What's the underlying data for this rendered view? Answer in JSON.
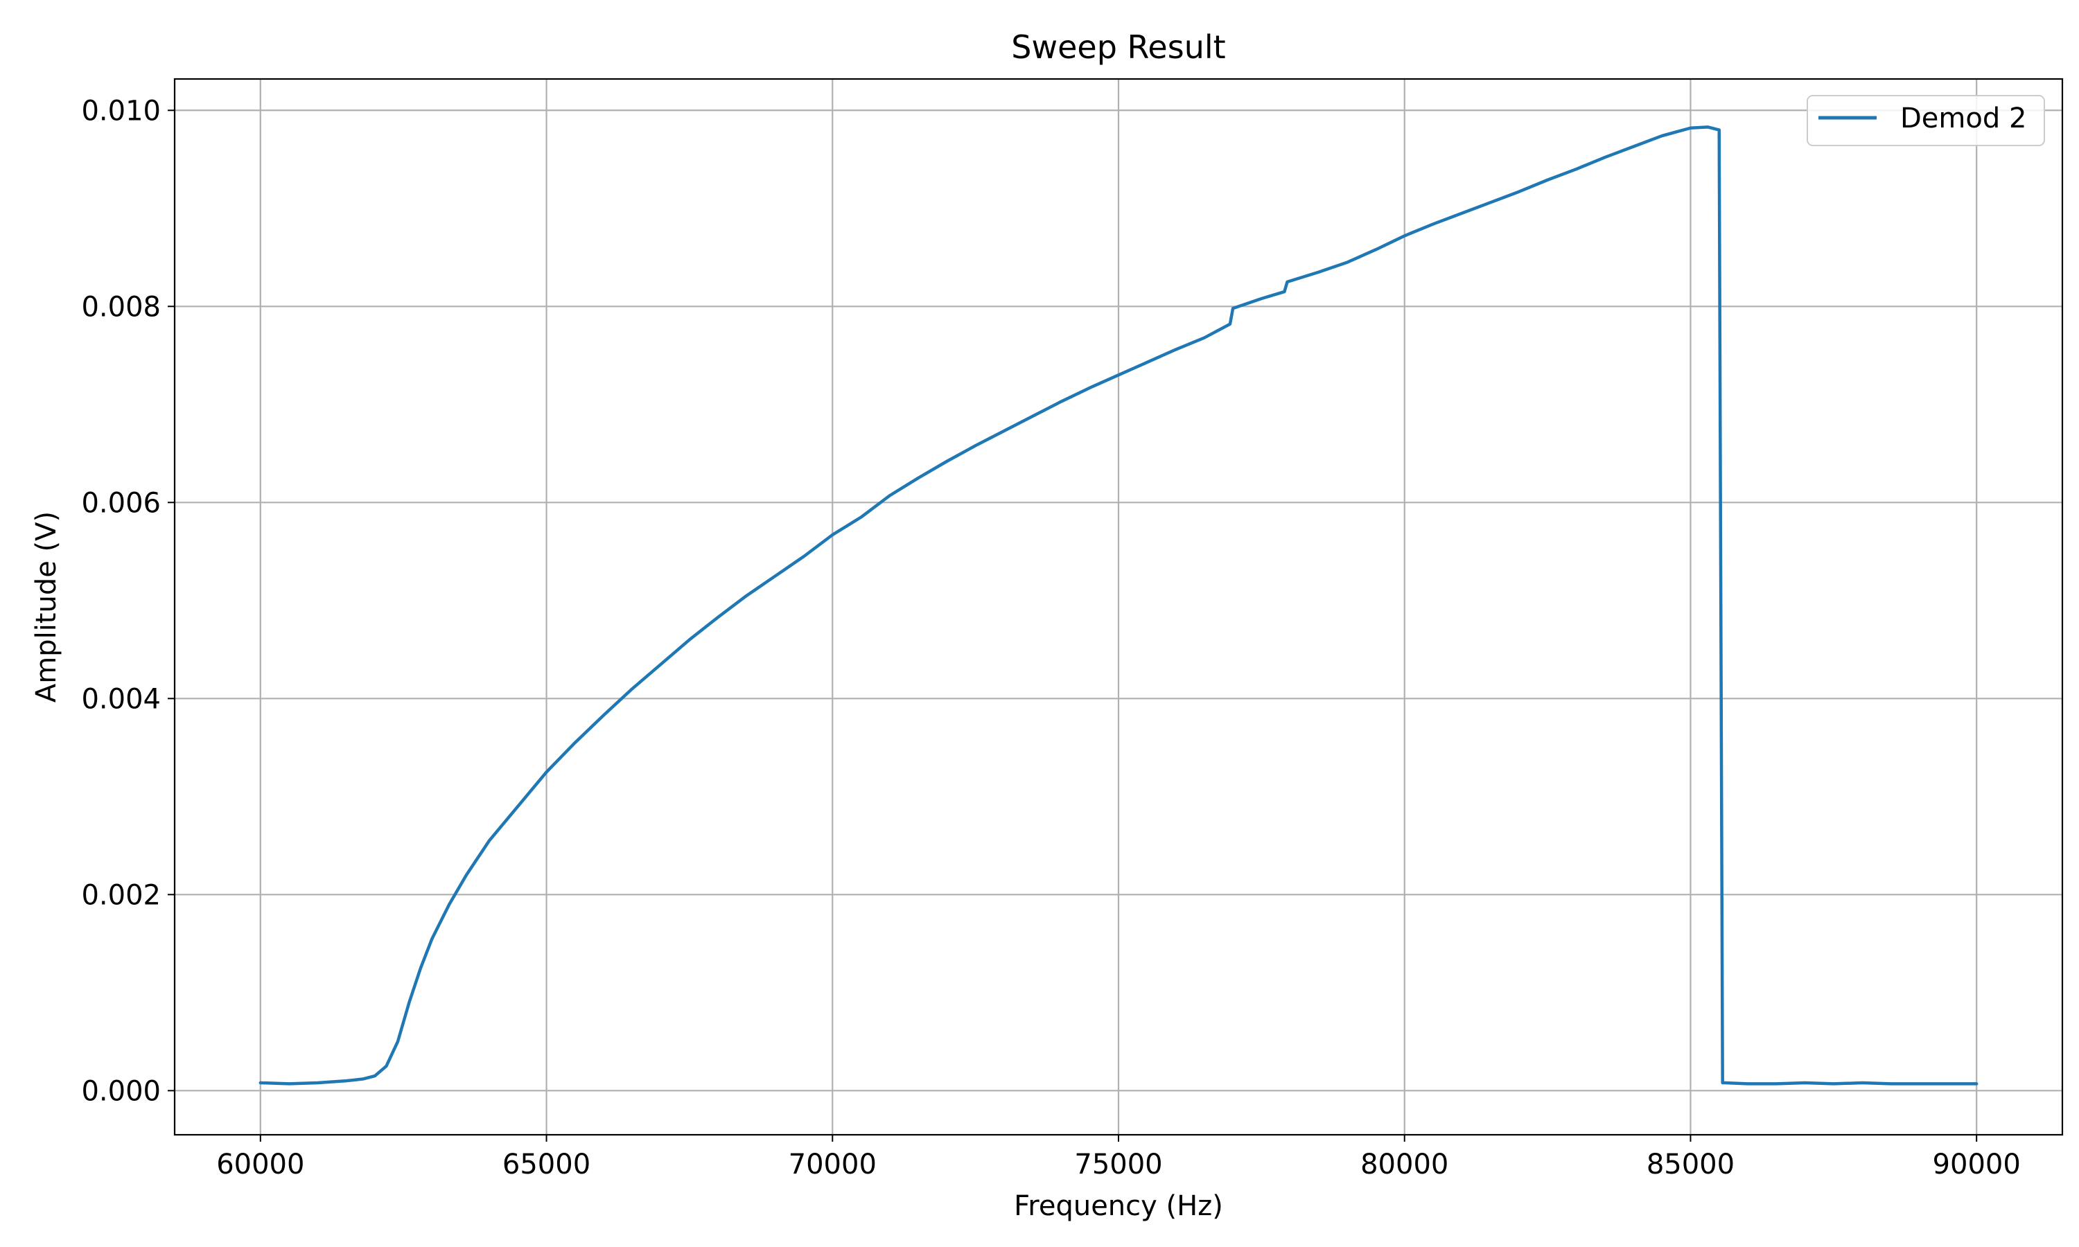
{
  "chart_data": {
    "type": "line",
    "title": "Sweep Result",
    "xlabel": "Frequency (Hz)",
    "ylabel": "Amplitude (V)",
    "xlim": [
      58500,
      91500
    ],
    "ylim": [
      -0.00045,
      0.01032
    ],
    "xticks": [
      60000,
      65000,
      70000,
      75000,
      80000,
      85000,
      90000
    ],
    "xtick_labels": [
      "60000",
      "65000",
      "70000",
      "75000",
      "80000",
      "85000",
      "90000"
    ],
    "yticks": [
      0.0,
      0.002,
      0.004,
      0.006,
      0.008,
      0.01
    ],
    "ytick_labels": [
      "0.000",
      "0.002",
      "0.004",
      "0.006",
      "0.008",
      "0.010"
    ],
    "grid": true,
    "legend_position": "top-right",
    "series": [
      {
        "name": "Demod 2",
        "color": "#1f77b4",
        "x": [
          60000,
          60500,
          61000,
          61500,
          61800,
          62000,
          62200,
          62400,
          62600,
          62800,
          63000,
          63300,
          63600,
          64000,
          64500,
          65000,
          65500,
          66000,
          66500,
          67000,
          67500,
          68000,
          68500,
          69000,
          69500,
          70000,
          70500,
          71000,
          71500,
          72000,
          72500,
          73000,
          73500,
          74000,
          74500,
          75000,
          75500,
          76000,
          76500,
          76950,
          77000,
          77500,
          77900,
          77950,
          78500,
          79000,
          79500,
          80000,
          80500,
          81000,
          81500,
          82000,
          82500,
          83000,
          83500,
          84000,
          84500,
          85000,
          85300,
          85500,
          85560,
          85600,
          86000,
          86500,
          87000,
          87500,
          88000,
          88500,
          89000,
          89500,
          90000
        ],
        "y": [
          8e-05,
          7e-05,
          8e-05,
          0.0001,
          0.00012,
          0.00015,
          0.00025,
          0.0005,
          0.0009,
          0.00125,
          0.00155,
          0.0019,
          0.0022,
          0.00255,
          0.0029,
          0.00325,
          0.00355,
          0.00383,
          0.0041,
          0.00435,
          0.0046,
          0.00483,
          0.00505,
          0.00525,
          0.00545,
          0.00567,
          0.00585,
          0.00607,
          0.00625,
          0.00642,
          0.00658,
          0.00673,
          0.00688,
          0.00703,
          0.00717,
          0.0073,
          0.00743,
          0.00756,
          0.00768,
          0.00782,
          0.00798,
          0.00808,
          0.00815,
          0.00825,
          0.00835,
          0.00845,
          0.00858,
          0.00872,
          0.00884,
          0.00895,
          0.00906,
          0.00917,
          0.00929,
          0.0094,
          0.00952,
          0.00963,
          0.00974,
          0.00982,
          0.00983,
          0.0098,
          8e-05,
          8e-05,
          7e-05,
          7e-05,
          8e-05,
          7e-05,
          8e-05,
          7e-05,
          7e-05,
          7e-05,
          7e-05
        ]
      }
    ]
  }
}
